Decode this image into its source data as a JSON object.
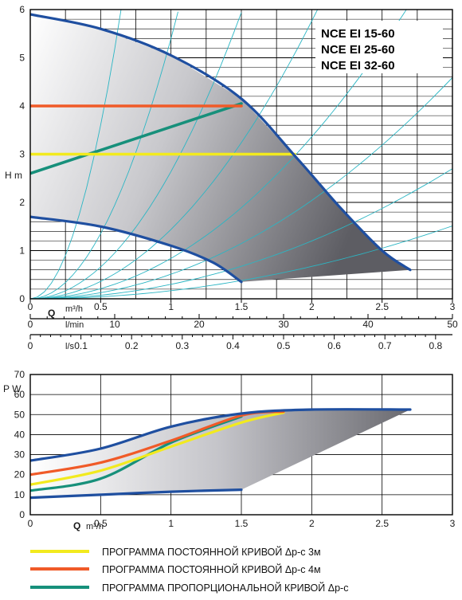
{
  "chart_data": [
    {
      "type": "line",
      "id": "head",
      "ylabel": "H m",
      "xlabel_units": [
        "Q",
        "m³/h"
      ],
      "xlim": [
        0,
        3
      ],
      "ylim": [
        0,
        6
      ],
      "x_ticks": [
        "0",
        "0.5",
        "1",
        "1.5",
        "2",
        "2.5",
        "3"
      ],
      "y_ticks": [
        "0",
        "1",
        "2",
        "3",
        "4",
        "5",
        "6"
      ],
      "models": [
        "NCE EI 15-60",
        "NCE EI 25-60",
        "NCE EI 32-60"
      ],
      "secondary_axes": [
        {
          "unit": "l/min",
          "max": 50,
          "ticks": [
            "0",
            "10",
            "20",
            "30",
            "40",
            "50"
          ]
        },
        {
          "unit": "l/s",
          "max": 0.8333,
          "ticks": [
            "0",
            "0.1",
            "0.2",
            "0.3",
            "0.4",
            "0.5",
            "0.6",
            "0.7",
            "0.8"
          ]
        }
      ],
      "series": [
        {
          "role": "max",
          "color": "#1f4fa0",
          "points": [
            [
              0,
              5.9
            ],
            [
              0.5,
              5.6
            ],
            [
              1.0,
              5.05
            ],
            [
              1.5,
              4.15
            ],
            [
              1.9,
              2.9
            ],
            [
              2.2,
              1.9
            ],
            [
              2.5,
              1.0
            ],
            [
              2.7,
              0.6
            ]
          ]
        },
        {
          "role": "min",
          "color": "#1f4fa0",
          "points": [
            [
              0,
              1.7
            ],
            [
              0.5,
              1.5
            ],
            [
              1.0,
              1.1
            ],
            [
              1.3,
              0.75
            ],
            [
              1.5,
              0.35
            ]
          ]
        },
        {
          "role": "const-3m",
          "color": "#f2ea1e",
          "points": [
            [
              0,
              3.0
            ],
            [
              1.88,
              3.0
            ]
          ]
        },
        {
          "role": "const-4m",
          "color": "#f05a28",
          "points": [
            [
              0,
              4.0
            ],
            [
              1.5,
              4.0
            ]
          ]
        },
        {
          "role": "proportional",
          "color": "#17907b",
          "points": [
            [
              0,
              2.6
            ],
            [
              1.5,
              4.05
            ]
          ]
        }
      ],
      "envelope_bottom": [
        [
          1.5,
          0.35
        ],
        [
          2.7,
          0.6
        ]
      ],
      "parabolas": [
        0.028,
        0.05,
        0.085,
        0.14,
        0.24,
        0.44,
        0.9,
        2.4
      ],
      "grid": true
    },
    {
      "type": "line",
      "id": "power",
      "ylabel": "P W",
      "xlabel_units": [
        "Q",
        "m³/h"
      ],
      "xlim": [
        0,
        3
      ],
      "ylim": [
        0,
        70
      ],
      "x_ticks": [
        "0",
        "0.5",
        "1",
        "1.5",
        "2",
        "2.5",
        "3"
      ],
      "y_ticks": [
        "0",
        "10",
        "20",
        "30",
        "40",
        "50",
        "60",
        "70"
      ],
      "series": [
        {
          "role": "max",
          "color": "#1f4fa0",
          "points": [
            [
              0,
              27
            ],
            [
              0.5,
              33
            ],
            [
              1.0,
              44
            ],
            [
              1.5,
              50.5
            ],
            [
              2.0,
              52.5
            ],
            [
              2.7,
              52.5
            ]
          ]
        },
        {
          "role": "min",
          "color": "#1f4fa0",
          "points": [
            [
              0,
              8.5
            ],
            [
              0.5,
              10
            ],
            [
              1.0,
              11.5
            ],
            [
              1.5,
              12.5
            ]
          ]
        },
        {
          "role": "const-4m",
          "color": "#f05a28",
          "points": [
            [
              0,
              20
            ],
            [
              0.5,
              26
            ],
            [
              1.0,
              37
            ],
            [
              1.5,
              49.5
            ],
            [
              1.8,
              51.5
            ]
          ]
        },
        {
          "role": "const-3m",
          "color": "#f2ea1e",
          "points": [
            [
              0,
              15
            ],
            [
              0.5,
              22
            ],
            [
              1.0,
              34
            ],
            [
              1.5,
              46
            ],
            [
              1.8,
              51
            ]
          ]
        },
        {
          "role": "proportional",
          "color": "#17907b",
          "points": [
            [
              0,
              12
            ],
            [
              0.5,
              18
            ],
            [
              1.0,
              36
            ],
            [
              1.5,
              49
            ]
          ]
        }
      ],
      "envelope_bottom": [
        [
          1.5,
          12.5
        ],
        [
          2.7,
          52.5
        ]
      ],
      "grid": true
    }
  ],
  "legend": [
    {
      "color": "#f2ea1e",
      "label": "ПРОГРАММА ПОСТОЯННОЙ КРИВОЙ Δр-с 3м"
    },
    {
      "color": "#f05a28",
      "label": "ПРОГРАММА ПОСТОЯННОЙ КРИВОЙ Δр-с 4м"
    },
    {
      "color": "#17907b",
      "label": "ПРОГРАММА ПРОПОРЦИОНАЛЬНОЙ КРИВОЙ Δр-с"
    }
  ]
}
